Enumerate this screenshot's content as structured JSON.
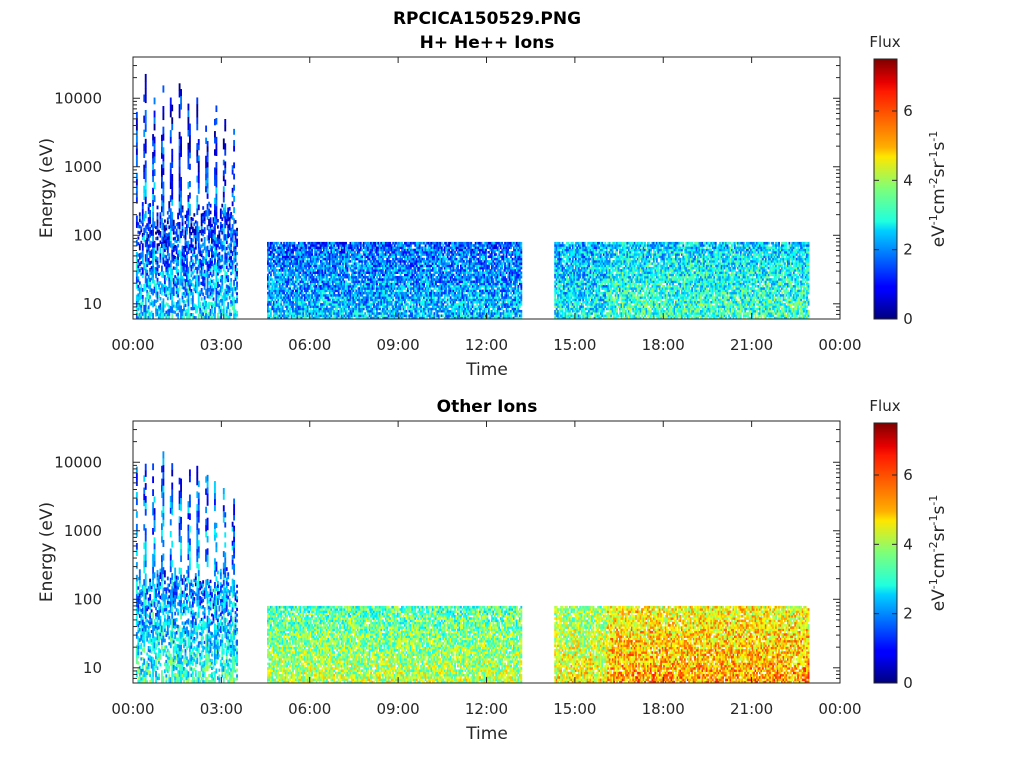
{
  "figure_title": "RPCICA150529.PNG",
  "chart_data": [
    {
      "type": "heatmap",
      "title": "H+ He++ Ions",
      "xlabel": "Time",
      "ylabel": "Energy (eV)",
      "x_ticks": [
        "00:00",
        "03:00",
        "06:00",
        "09:00",
        "12:00",
        "15:00",
        "18:00",
        "21:00",
        "00:00"
      ],
      "x_range_hours": [
        0,
        24
      ],
      "y_scale": "log",
      "y_ticks": [
        10,
        100,
        1000,
        10000
      ],
      "y_tick_labels": [
        "10",
        "100",
        "1000",
        "10000"
      ],
      "y_range": [
        6,
        40000
      ],
      "colorbar": {
        "title": "Flux",
        "label": "eV-1cm-2sr-1s-1",
        "ticks": [
          "0",
          "2",
          "4",
          "6"
        ],
        "range": [
          0,
          7.5
        ],
        "colormap": "jet"
      },
      "data_segments_hours": [
        [
          0.1,
          3.5
        ],
        [
          4.55,
          13.2
        ],
        [
          14.3,
          22.95
        ]
      ],
      "segments": [
        {
          "t": [
            0.1,
            3.5
          ],
          "emax": 30000,
          "base": 2.6,
          "bursts": true
        },
        {
          "t": [
            4.55,
            13.2
          ],
          "emax": 80,
          "base": 2.4
        },
        {
          "t": [
            14.3,
            16.1
          ],
          "emax": 80,
          "base": 2.9
        },
        {
          "t": [
            16.1,
            22.95
          ],
          "emax": 80,
          "base": 3.3
        }
      ],
      "grid": false
    },
    {
      "type": "heatmap",
      "title": "Other Ions",
      "xlabel": "Time",
      "ylabel": "Energy (eV)",
      "x_ticks": [
        "00:00",
        "03:00",
        "06:00",
        "09:00",
        "12:00",
        "15:00",
        "18:00",
        "21:00",
        "00:00"
      ],
      "x_range_hours": [
        0,
        24
      ],
      "y_scale": "log",
      "y_ticks": [
        10,
        100,
        1000,
        10000
      ],
      "y_tick_labels": [
        "10",
        "100",
        "1000",
        "10000"
      ],
      "y_range": [
        6,
        40000
      ],
      "colorbar": {
        "title": "Flux",
        "label": "eV-1cm-2sr-1s-1",
        "ticks": [
          "0",
          "2",
          "4",
          "6"
        ],
        "range": [
          0,
          7.5
        ],
        "colormap": "jet"
      },
      "data_segments_hours": [
        [
          0.1,
          3.5
        ],
        [
          4.55,
          13.2
        ],
        [
          14.3,
          22.95
        ]
      ],
      "segments": [
        {
          "t": [
            0.1,
            3.5
          ],
          "emax": 20000,
          "base": 3.2,
          "bursts": true
        },
        {
          "t": [
            4.55,
            13.2
          ],
          "emax": 80,
          "base": 4.2
        },
        {
          "t": [
            14.3,
            16.1
          ],
          "emax": 80,
          "base": 4.7
        },
        {
          "t": [
            16.1,
            22.95
          ],
          "emax": 80,
          "base": 5.4
        }
      ],
      "grid": false
    }
  ]
}
